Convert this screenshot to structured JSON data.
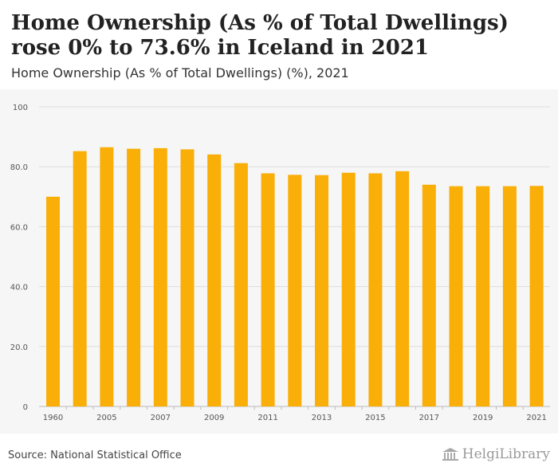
{
  "header": {
    "title": "Home Ownership (As % of Total Dwellings) rose 0% to 73.6% in Iceland in 2021",
    "subtitle": "Home Ownership (As % of Total Dwellings) (%), 2021"
  },
  "footer": {
    "source": "Source: National Statistical Office",
    "logo_text": "HelgiLibrary"
  },
  "chart_data": {
    "type": "bar",
    "categories": [
      "1960",
      "",
      "2005",
      "",
      "2007",
      "",
      "2009",
      "",
      "2011",
      "",
      "2013",
      "",
      "2015",
      "",
      "2017",
      "",
      "2019",
      "",
      "2021"
    ],
    "values": [
      70.0,
      85.2,
      86.5,
      86.0,
      86.2,
      85.8,
      84.1,
      81.2,
      77.8,
      77.3,
      77.2,
      78.0,
      77.8,
      78.5,
      74.0,
      73.5,
      73.5,
      73.5,
      73.6
    ],
    "ylim": [
      0,
      100
    ],
    "yticks": [
      0,
      20,
      40,
      60,
      80,
      100
    ],
    "ytick_labels": [
      "0",
      "20.0",
      "40.0",
      "60.0",
      "80.0",
      "100"
    ],
    "grid": true,
    "bar_color": "#f9ae08"
  }
}
